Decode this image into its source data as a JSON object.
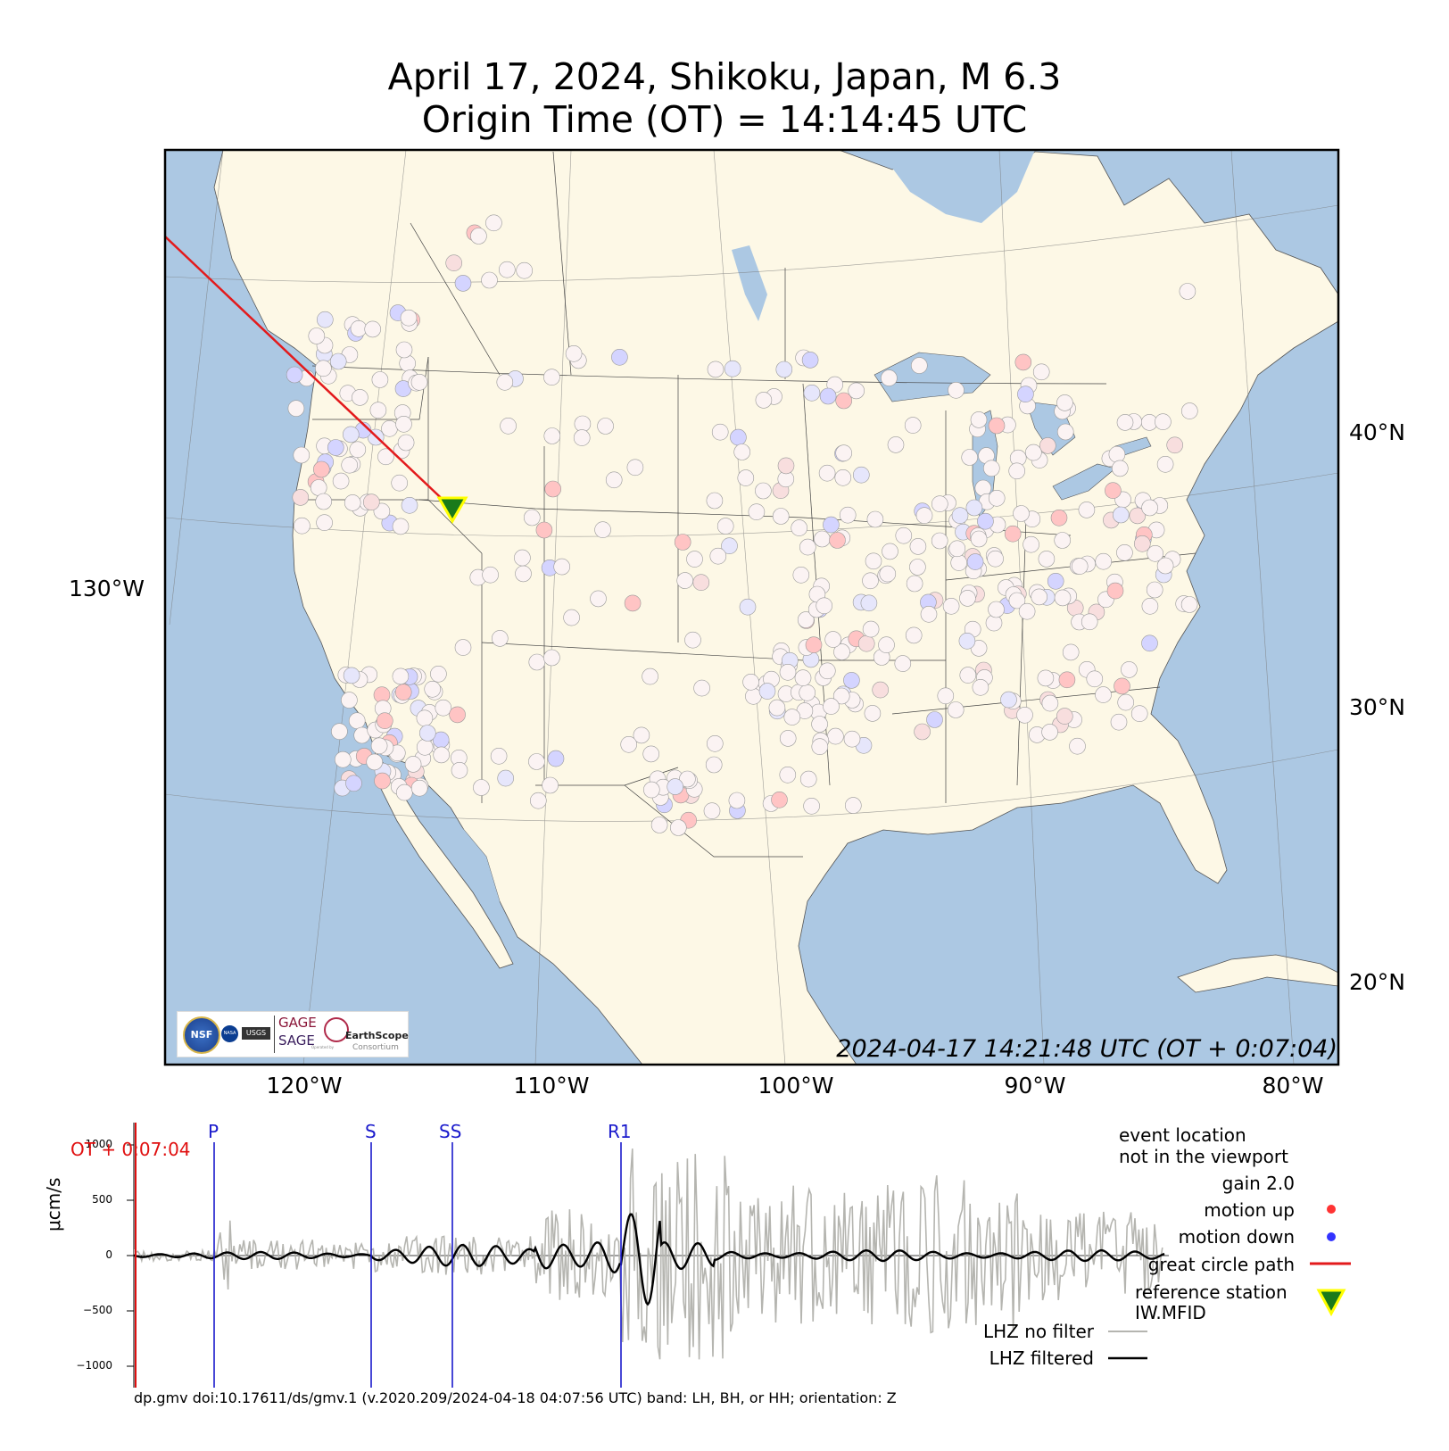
{
  "title": {
    "line1": "April 17, 2024, Shikoku, Japan, M 6.3",
    "line2": "Origin Time (OT) = 14:14:45 UTC"
  },
  "map": {
    "ocean_color": "#acc8e3",
    "land_color": "#fdf8e6",
    "border_color": "#222222",
    "great_circle_color": "#e31a1c",
    "reference_station_color": "#1a7a1a",
    "reference_station_outline": "#ffff00",
    "lon_labels": [
      "120°W",
      "110°W",
      "100°W",
      "90°W",
      "80°W"
    ],
    "lat_labels": [
      "40°N",
      "30°N",
      "20°N"
    ],
    "west_label": "130°W",
    "timestamp": "2024-04-17 14:21:48 UTC (OT + 0:07:04)",
    "logos": {
      "gage": "GAGE",
      "sage": "SAGE",
      "earthscope": "EarthScope",
      "consortium": "Consortium",
      "operated_by": "Operated by",
      "nsf": "NSF",
      "nasa": "NASA",
      "usgs": "USGS"
    },
    "stations_summary": {
      "count_shown": 560,
      "motion_up_color": "#ff3333",
      "motion_down_color": "#3333ff"
    }
  },
  "legend": {
    "event_line1": "event location",
    "event_line2": "not in the viewport",
    "gain": "gain  2.0",
    "motion_up": "motion up",
    "motion_down": "motion down",
    "great_circle": "great circle path",
    "ref_line1": "reference station",
    "ref_line2": "IW.MFID",
    "no_filter": "LHZ no filter",
    "filtered": "LHZ filtered"
  },
  "seismogram": {
    "ylabel": "μcm/s",
    "yticks": [
      "1000",
      "500",
      "0",
      "−500",
      "−1000"
    ],
    "ot_label": "OT + 0:07:04",
    "phases": [
      "P",
      "S",
      "SS",
      "R1"
    ],
    "raw_color": "#b5b5b0",
    "filtered_color": "#000000",
    "phase_color": "#1a1acc",
    "ot_color": "#e01010"
  },
  "footer": "dp.gmv doi:10.17611/ds/gmv.1 (v.2020.209/2024-04-18 04:07:56 UTC) band: LH, BH, or HH; orientation: Z"
}
